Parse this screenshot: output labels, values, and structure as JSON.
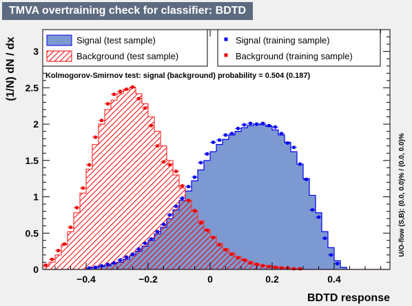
{
  "chart_data": {
    "type": "histogram",
    "title": "TMVA overtraining check for classifier: BDTD",
    "xlabel": "BDTD response",
    "ylabel": "(1/N) dN / dx",
    "right_label": "U/O-flow (S,B): (0.0, 0.0)% / (0.0, 0.0)%",
    "annotation": "Kolmogorov-Smirnov test: signal (background) probability = 0.504 (0.187)",
    "xlim": [
      -0.54,
      0.58
    ],
    "ylim": [
      0,
      3.3
    ],
    "x_ticks": [
      -0.4,
      -0.2,
      0,
      0.2,
      0.4
    ],
    "x_tick_labels": [
      "−0.4",
      "−0.2",
      "0",
      "0.2",
      "0.4"
    ],
    "y_ticks": [
      0,
      0.5,
      1,
      1.5,
      2,
      2.5,
      3
    ],
    "y_tick_labels": [
      "0",
      "0.5",
      "1",
      "1.5",
      "2",
      "2.5",
      "3"
    ],
    "bin_width": 0.02,
    "bin_start": -0.54,
    "legend": [
      {
        "label": "Signal (test sample)",
        "style": "fill-blue"
      },
      {
        "label": "Signal (training sample)",
        "style": "marker-blue"
      },
      {
        "label": "Background (test sample)",
        "style": "hatch-red"
      },
      {
        "label": "Background (training sample)",
        "style": "marker-red"
      }
    ],
    "series": [
      {
        "name": "Signal (test sample)",
        "color": "#7d99d1",
        "edge": "#0000ee",
        "values": [
          0,
          0,
          0,
          0,
          0,
          0,
          0,
          0.02,
          0.03,
          0.04,
          0.05,
          0.08,
          0.1,
          0.14,
          0.19,
          0.25,
          0.32,
          0.4,
          0.49,
          0.58,
          0.7,
          0.82,
          0.95,
          1.08,
          1.22,
          1.37,
          1.5,
          1.62,
          1.72,
          1.79,
          1.85,
          1.9,
          1.95,
          1.98,
          2.0,
          1.99,
          1.97,
          1.92,
          1.85,
          1.75,
          1.62,
          1.45,
          1.25,
          1.02,
          0.78,
          0.52,
          0.3,
          0.12,
          0.03,
          0,
          0,
          0,
          0,
          0,
          0,
          0
        ]
      },
      {
        "name": "Signal (training sample)",
        "color": "#0000ee",
        "values": [
          null,
          null,
          null,
          null,
          null,
          null,
          null,
          0.02,
          0.03,
          0.05,
          0.07,
          0.09,
          0.13,
          0.17,
          0.21,
          0.28,
          0.36,
          0.42,
          0.52,
          0.62,
          0.75,
          0.87,
          0.98,
          1.14,
          1.27,
          1.47,
          1.59,
          1.75,
          1.78,
          1.85,
          1.87,
          1.94,
          1.99,
          2.01,
          2.0,
          2.01,
          1.98,
          1.96,
          1.87,
          1.74,
          1.68,
          1.45,
          1.24,
          0.82,
          0.72,
          0.43,
          0.2,
          0.08,
          null,
          null,
          null,
          null,
          null,
          null,
          null,
          null
        ]
      },
      {
        "name": "Background (test sample)",
        "color": "#ff3333",
        "values": [
          0.04,
          0.1,
          0.2,
          0.34,
          0.52,
          0.78,
          1.05,
          1.38,
          1.72,
          2.0,
          2.2,
          2.33,
          2.42,
          2.48,
          2.5,
          2.42,
          2.28,
          2.1,
          1.9,
          1.7,
          1.5,
          1.3,
          1.12,
          0.95,
          0.8,
          0.67,
          0.55,
          0.45,
          0.36,
          0.29,
          0.23,
          0.18,
          0.14,
          0.11,
          0.08,
          0.06,
          0.05,
          0.04,
          0.03,
          0.02,
          0.01,
          0.01,
          0,
          0,
          0,
          0,
          0,
          0,
          0,
          0,
          0,
          0,
          0,
          0,
          0,
          0
        ]
      },
      {
        "name": "Background (training sample)",
        "color": "#ee0000",
        "values": [
          0.06,
          0.14,
          0.26,
          0.35,
          0.58,
          0.85,
          1.12,
          1.44,
          1.82,
          2.05,
          2.28,
          2.41,
          2.45,
          2.48,
          2.51,
          2.35,
          2.22,
          1.98,
          1.7,
          1.48,
          1.44,
          1.35,
          1.15,
          0.95,
          0.81,
          0.64,
          0.54,
          0.44,
          0.34,
          0.27,
          0.21,
          0.16,
          0.13,
          0.09,
          0.07,
          0.05,
          0.04,
          0.03,
          0.02,
          0.02,
          0.01,
          0.01,
          null,
          null,
          null,
          null,
          null,
          null,
          null,
          null,
          null,
          null,
          null,
          null,
          null,
          null
        ]
      }
    ]
  }
}
